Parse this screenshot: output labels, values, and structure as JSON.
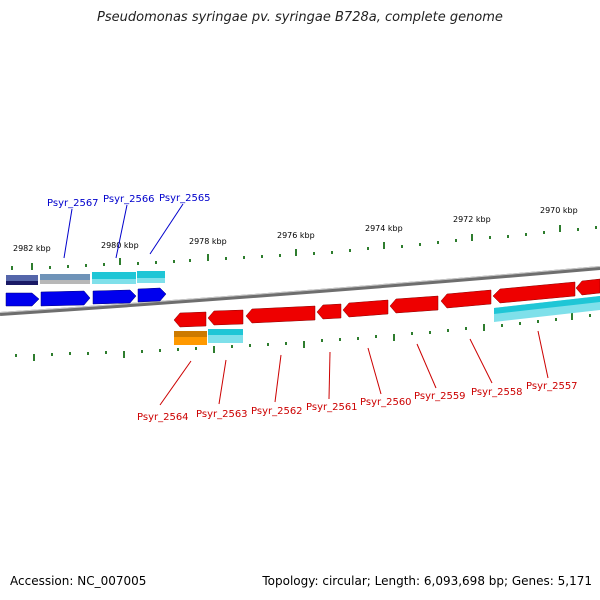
{
  "title": "Pseudomonas syringae pv. syringae B728a, complete genome",
  "footer": {
    "accession": "Accession: NC_007005",
    "stats": "Topology: circular; Length: 6,093,698 bp; Genes: 5,171"
  },
  "scale": {
    "unit": "kbp",
    "labels": [
      "2982 kbp",
      "2980 kbp",
      "2978 kbp",
      "2976 kbp",
      "2974 kbp",
      "2972 kbp",
      "2970 kbp"
    ]
  },
  "colors": {
    "forward_label": "#0000cc",
    "reverse_label": "#cc0000",
    "backbone": "#7a7a7a",
    "tick": "#2e7d2e",
    "blue": "#0000ee",
    "red": "#ee0000",
    "cyan": "#00c8d8",
    "orange": "#ff9900",
    "slate": "#5a6aa0",
    "gray": "#b5b5b5"
  },
  "forward_gene_labels": [
    "Psyr_2567",
    "Psyr_2566",
    "Psyr_2565"
  ],
  "reverse_gene_labels": [
    "Psyr_2564",
    "Psyr_2563",
    "Psyr_2562",
    "Psyr_2561",
    "Psyr_2560",
    "Psyr_2559",
    "Psyr_2558",
    "Psyr_2557"
  ]
}
